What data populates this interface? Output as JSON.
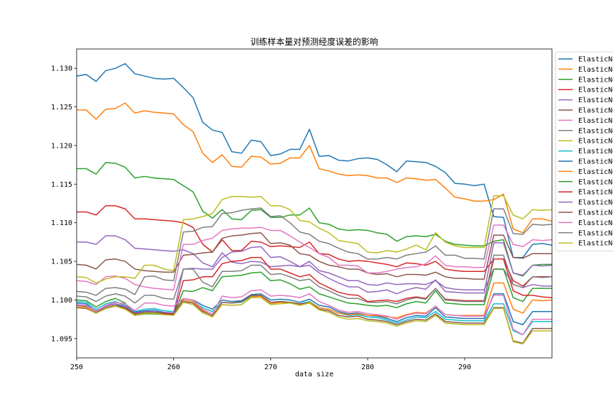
{
  "chart_data": {
    "type": "line",
    "title": "训练样本量对预测经度误差的影响",
    "xlabel": "data size",
    "ylabel": "",
    "xlim": [
      250,
      299
    ],
    "ylim": [
      1.0925,
      1.1325
    ],
    "x_ticks": [
      250,
      260,
      270,
      280,
      290
    ],
    "y_ticks": [
      1.095,
      1.1,
      1.105,
      1.11,
      1.115,
      1.12,
      1.125,
      1.13
    ],
    "grid": false,
    "legend_position": "upper right, outside plot (clipped)",
    "x": [
      250,
      251,
      252,
      253,
      254,
      255,
      256,
      257,
      258,
      259,
      260,
      261,
      262,
      263,
      264,
      265,
      266,
      267,
      268,
      269,
      270,
      271,
      272,
      273,
      274,
      275,
      276,
      277,
      278,
      279,
      280,
      281,
      282,
      283,
      284,
      285,
      286,
      287,
      288,
      289,
      290,
      291,
      292,
      293,
      294,
      295,
      296,
      297,
      298,
      299
    ],
    "series": [
      {
        "name": "ElasticNet",
        "color": "#1f77b4",
        "values": [
          1.129,
          1.1292,
          1.1283,
          1.1297,
          1.13,
          1.1306,
          1.1293,
          1.129,
          1.1287,
          1.1286,
          1.1287,
          1.1275,
          1.1262,
          1.123,
          1.122,
          1.1217,
          1.1192,
          1.119,
          1.1207,
          1.1205,
          1.1187,
          1.1189,
          1.1195,
          1.1195,
          1.1221,
          1.1186,
          1.1187,
          1.1181,
          1.118,
          1.1183,
          1.1184,
          1.1182,
          1.1175,
          1.1166,
          1.118,
          1.1179,
          1.1178,
          1.1173,
          1.1165,
          1.1151,
          1.115,
          1.1148,
          1.115,
          1.1108,
          1.1107,
          1.1055,
          1.1055,
          1.1072,
          1.1073,
          1.1071
        ]
      },
      {
        "name": "ElasticNet",
        "color": "#ff7f0e",
        "values": [
          1.1246,
          1.1246,
          1.1234,
          1.1247,
          1.1248,
          1.1255,
          1.1242,
          1.1245,
          1.1243,
          1.1242,
          1.1241,
          1.1227,
          1.1218,
          1.119,
          1.1178,
          1.1188,
          1.1173,
          1.1172,
          1.1186,
          1.1185,
          1.1176,
          1.1177,
          1.1184,
          1.1184,
          1.12,
          1.117,
          1.1167,
          1.1163,
          1.1161,
          1.1162,
          1.1161,
          1.1158,
          1.1158,
          1.1152,
          1.1158,
          1.1157,
          1.1155,
          1.1156,
          1.1145,
          1.1133,
          1.1131,
          1.1128,
          1.1128,
          1.113,
          1.1137,
          1.1092,
          1.1087,
          1.1105,
          1.1105,
          1.1102
        ]
      },
      {
        "name": "ElasticNet",
        "color": "#2ca02c",
        "values": [
          1.117,
          1.117,
          1.1163,
          1.1178,
          1.1177,
          1.1172,
          1.1158,
          1.116,
          1.1158,
          1.1157,
          1.1156,
          1.1148,
          1.114,
          1.1115,
          1.1106,
          1.1117,
          1.1105,
          1.1104,
          1.1116,
          1.1117,
          1.1107,
          1.1107,
          1.111,
          1.111,
          1.1119,
          1.11,
          1.1098,
          1.1092,
          1.109,
          1.1091,
          1.109,
          1.1087,
          1.1085,
          1.1076,
          1.1082,
          1.1083,
          1.1082,
          1.1085,
          1.1076,
          1.1072,
          1.1071,
          1.107,
          1.107,
          1.1076,
          1.1078,
          1.1035,
          1.1031,
          1.1045,
          1.1046,
          1.1046
        ]
      },
      {
        "name": "ElasticNet",
        "color": "#d62728",
        "values": [
          1.1114,
          1.1114,
          1.111,
          1.1122,
          1.1122,
          1.1118,
          1.1105,
          1.1105,
          1.1104,
          1.1103,
          1.1102,
          1.11,
          1.1094,
          1.1072,
          1.1062,
          1.1078,
          1.1064,
          1.1064,
          1.1076,
          1.1075,
          1.1069,
          1.107,
          1.1069,
          1.1068,
          1.1075,
          1.106,
          1.1059,
          1.1053,
          1.105,
          1.1051,
          1.105,
          1.1048,
          1.1046,
          1.1043,
          1.1048,
          1.1047,
          1.1045,
          1.105,
          1.104,
          1.1038,
          1.1037,
          1.1037,
          1.1037,
          1.1053,
          1.1053,
          1.1025,
          1.1018,
          1.103,
          1.103,
          1.103
        ]
      },
      {
        "name": "ElasticNet",
        "color": "#9467bd",
        "values": [
          1.1075,
          1.1075,
          1.1072,
          1.1083,
          1.1083,
          1.1078,
          1.1067,
          1.1066,
          1.1065,
          1.1064,
          1.1063,
          1.1065,
          1.106,
          1.1048,
          1.1043,
          1.1061,
          1.1049,
          1.1047,
          1.105,
          1.1049,
          1.1043,
          1.1044,
          1.1045,
          1.1043,
          1.105,
          1.1038,
          1.1035,
          1.103,
          1.1025,
          1.1025,
          1.102,
          1.1019,
          1.1022,
          1.102,
          1.1021,
          1.1021,
          1.102,
          1.1025,
          1.1016,
          1.1014,
          1.1013,
          1.1013,
          1.1013,
          1.104,
          1.104,
          1.102,
          1.1016,
          1.102,
          1.1018,
          1.1018
        ]
      },
      {
        "name": "ElasticNet",
        "color": "#8c564b",
        "values": [
          1.1046,
          1.1045,
          1.104,
          1.1052,
          1.1053,
          1.105,
          1.104,
          1.1038,
          1.1037,
          1.1036,
          1.1036,
          1.1058,
          1.1059,
          1.1061,
          1.1062,
          1.108,
          1.1083,
          1.1084,
          1.1086,
          1.1087,
          1.1073,
          1.1074,
          1.1071,
          1.106,
          1.1058,
          1.105,
          1.1045,
          1.1043,
          1.104,
          1.104,
          1.1035,
          1.1033,
          1.1034,
          1.103,
          1.1033,
          1.1033,
          1.1032,
          1.1036,
          1.103,
          1.1028,
          1.1028,
          1.1027,
          1.1027,
          1.1084,
          1.1084,
          1.1055,
          1.1054,
          1.106,
          1.106,
          1.106
        ]
      },
      {
        "name": "ElasticNet",
        "color": "#e377c2",
        "values": [
          1.1025,
          1.1024,
          1.102,
          1.103,
          1.1031,
          1.1028,
          1.102,
          1.1017,
          1.1015,
          1.1014,
          1.1013,
          1.1072,
          1.1072,
          1.1077,
          1.108,
          1.109,
          1.1092,
          1.1093,
          1.1093,
          1.1094,
          1.109,
          1.109,
          1.1083,
          1.1075,
          1.1068,
          1.106,
          1.1055,
          1.1045,
          1.1045,
          1.1044,
          1.1035,
          1.1035,
          1.1037,
          1.104,
          1.1042,
          1.1043,
          1.1047,
          1.1057,
          1.1045,
          1.1043,
          1.1043,
          1.1042,
          1.1042,
          1.1097,
          1.1097,
          1.1072,
          1.1069,
          1.1078,
          1.1077,
          1.1078
        ]
      },
      {
        "name": "ElasticNet",
        "color": "#7f7f7f",
        "values": [
          1.1011,
          1.101,
          1.1006,
          1.1015,
          1.1016,
          1.1014,
          1.1007,
          1.103,
          1.1031,
          1.1026,
          1.1025,
          1.1088,
          1.1089,
          1.1094,
          1.1095,
          1.1112,
          1.1113,
          1.1116,
          1.1118,
          1.1119,
          1.1108,
          1.1109,
          1.11,
          1.1088,
          1.1085,
          1.1076,
          1.1073,
          1.1067,
          1.1062,
          1.106,
          1.1053,
          1.1053,
          1.1055,
          1.1053,
          1.1058,
          1.106,
          1.1062,
          1.107,
          1.1058,
          1.1058,
          1.1054,
          1.1054,
          1.1053,
          1.1118,
          1.1118,
          1.1086,
          1.1085,
          1.1098,
          1.1097,
          1.1098
        ]
      },
      {
        "name": "ElasticNet",
        "color": "#bcbd22",
        "values": [
          1.103,
          1.1029,
          1.1022,
          1.1027,
          1.103,
          1.103,
          1.1028,
          1.1045,
          1.1045,
          1.104,
          1.1038,
          1.1104,
          1.1105,
          1.1108,
          1.1112,
          1.113,
          1.1134,
          1.1134,
          1.1133,
          1.1134,
          1.1122,
          1.1122,
          1.1117,
          1.1103,
          1.1101,
          1.1093,
          1.1087,
          1.1077,
          1.1075,
          1.1073,
          1.1062,
          1.1061,
          1.1064,
          1.1062,
          1.1066,
          1.1071,
          1.1065,
          1.1087,
          1.1075,
          1.107,
          1.1068,
          1.1068,
          1.1068,
          1.1135,
          1.1135,
          1.111,
          1.1105,
          1.1117,
          1.1116,
          1.1117
        ]
      },
      {
        "name": "ElasticNet",
        "color": "#17becf",
        "values": [
          1.0998,
          1.0997,
          1.0988,
          1.0995,
          1.0998,
          1.0993,
          1.0985,
          1.0988,
          1.0989,
          1.0986,
          1.0985,
          1.1,
          1.0998,
          1.099,
          1.0985,
          1.0997,
          1.0996,
          1.0997,
          1.1005,
          1.1006,
          1.0997,
          1.0998,
          1.0997,
          1.0995,
          1.0998,
          1.099,
          1.0988,
          1.0983,
          1.098,
          1.0981,
          1.0978,
          1.0977,
          1.0974,
          1.097,
          1.0974,
          1.0978,
          1.0977,
          1.0985,
          1.0975,
          1.0974,
          1.0973,
          1.0973,
          1.0973,
          1.0995,
          1.0995,
          1.096,
          1.0955,
          1.0972,
          1.0972,
          1.0972
        ]
      },
      {
        "name": "ElasticNet",
        "color": "#1f77b4",
        "values": [
          1.0996,
          1.0995,
          1.0985,
          1.0992,
          1.0995,
          1.099,
          1.0984,
          1.0986,
          1.0987,
          1.0984,
          1.0983,
          1.1002,
          1.1,
          1.0993,
          1.0988,
          1.1,
          1.0998,
          1.0999,
          1.1007,
          1.1008,
          1.1,
          1.1001,
          1.1,
          1.0997,
          1.1001,
          1.0993,
          1.0991,
          1.0985,
          1.0982,
          1.0983,
          1.098,
          1.0979,
          1.0976,
          1.0972,
          1.0977,
          1.098,
          1.0979,
          1.099,
          1.0978,
          1.0977,
          1.0976,
          1.0976,
          1.0976,
          1.1008,
          1.1008,
          1.0972,
          1.0968,
          1.0985,
          1.0985,
          1.0985
        ]
      },
      {
        "name": "ElasticNet",
        "color": "#ff7f0e",
        "values": [
          1.0993,
          1.0991,
          1.0983,
          1.099,
          1.0993,
          1.0988,
          1.0981,
          1.0983,
          1.0983,
          1.0982,
          1.0982,
          1.1,
          1.0998,
          1.0987,
          1.0979,
          1.0994,
          1.0993,
          1.0994,
          1.1004,
          1.1005,
          1.0995,
          1.0997,
          1.0996,
          1.0994,
          1.0997,
          1.099,
          1.0988,
          1.0983,
          1.0981,
          1.0982,
          1.098,
          1.098,
          1.0978,
          1.0977,
          1.0981,
          1.0984,
          1.0983,
          1.0992,
          1.0981,
          1.098,
          1.098,
          1.098,
          1.098,
          1.1022,
          1.1022,
          1.0988,
          1.0983,
          1.1,
          1.0999,
          1.1
        ]
      },
      {
        "name": "ElasticNet",
        "color": "#2ca02c",
        "values": [
          1.1,
          1.0999,
          1.0991,
          1.0998,
          1.1002,
          1.0996,
          1.098,
          1.0982,
          1.0982,
          1.0981,
          1.0981,
          1.1012,
          1.1011,
          1.1016,
          1.1012,
          1.103,
          1.1031,
          1.1032,
          1.1035,
          1.1036,
          1.1025,
          1.1026,
          1.1021,
          1.1014,
          1.1017,
          1.1008,
          1.1004,
          1.1,
          1.0996,
          1.0995,
          1.0993,
          1.0992,
          1.0993,
          1.099,
          1.0995,
          1.0998,
          1.0996,
          1.1012,
          1.0996,
          1.0995,
          1.0994,
          1.0994,
          1.0994,
          1.104,
          1.104,
          1.1003,
          1.0998,
          1.1015,
          1.1015,
          1.1015
        ]
      },
      {
        "name": "ElasticNet",
        "color": "#d62728",
        "values": [
          1.099,
          1.0989,
          1.0983,
          1.0989,
          1.0992,
          1.0989,
          1.098,
          1.0983,
          1.0983,
          1.0982,
          1.0981,
          1.1025,
          1.1026,
          1.103,
          1.103,
          1.1047,
          1.105,
          1.1051,
          1.1055,
          1.1055,
          1.104,
          1.104,
          1.1035,
          1.103,
          1.1033,
          1.1022,
          1.1016,
          1.101,
          1.1007,
          1.1006,
          1.0998,
          1.0999,
          1.1,
          1.0998,
          1.1002,
          1.1004,
          1.1002,
          1.1015,
          1.1001,
          1.1,
          1.0999,
          1.0999,
          1.0999,
          1.1053,
          1.1053,
          1.1012,
          1.1006,
          1.1006,
          1.1004,
          1.1003
        ]
      },
      {
        "name": "ElasticNet",
        "color": "#9467bd",
        "values": [
          1.0993,
          1.0992,
          1.0986,
          1.0992,
          1.0995,
          1.0992,
          1.0983,
          1.0985,
          1.0985,
          1.0984,
          1.0983,
          1.104,
          1.1041,
          1.104,
          1.104,
          1.1055,
          1.1062,
          1.1063,
          1.1068,
          1.1069,
          1.1055,
          1.1056,
          1.105,
          1.1043,
          1.1045,
          1.1035,
          1.1028,
          1.1022,
          1.1017,
          1.1017,
          1.101,
          1.1011,
          1.1013,
          1.1008,
          1.1013,
          1.1016,
          1.1014,
          1.1026,
          1.1011,
          1.101,
          1.1009,
          1.1009,
          1.1009,
          1.1074,
          1.1074,
          1.1035,
          1.1032,
          1.1045,
          1.1044,
          1.1045
        ]
      },
      {
        "name": "ElasticNet",
        "color": "#8c564b",
        "values": [
          1.0991,
          1.099,
          1.0984,
          1.099,
          1.0993,
          1.099,
          1.0982,
          1.0984,
          1.0984,
          1.0983,
          1.0982,
          1.0998,
          1.0996,
          1.0985,
          1.098,
          1.0997,
          1.0996,
          1.0998,
          1.1006,
          1.1006,
          1.0997,
          1.0998,
          1.0997,
          1.0995,
          1.0996,
          1.0988,
          1.0986,
          1.098,
          1.0978,
          1.0979,
          1.0975,
          1.0974,
          1.0972,
          1.0968,
          1.0972,
          1.0975,
          1.0974,
          1.0982,
          1.0972,
          1.0971,
          1.097,
          1.097,
          1.097,
          1.099,
          1.099,
          1.0947,
          1.0944,
          1.0963,
          1.0963,
          1.0963
        ]
      },
      {
        "name": "ElasticNet",
        "color": "#e377c2",
        "values": [
          1.0994,
          1.0993,
          1.0985,
          1.0993,
          1.0997,
          1.0995,
          1.0986,
          1.0996,
          1.0996,
          1.0993,
          1.0992,
          1.1002,
          1.1,
          1.0988,
          1.0982,
          1.1005,
          1.1003,
          1.1004,
          1.1012,
          1.1013,
          1.1005,
          1.1006,
          1.1005,
          1.1003,
          1.1008,
          1.0998,
          1.0993,
          1.0987,
          1.0984,
          1.0985,
          1.0982,
          1.0981,
          1.0979,
          1.0975,
          1.098,
          1.0983,
          1.0982,
          1.0992,
          1.0981,
          1.098,
          1.0979,
          1.0979,
          1.0979,
          1.1006,
          1.1006,
          1.0962,
          1.0955,
          1.0975,
          1.0975,
          1.0975
        ]
      },
      {
        "name": "ElasticNet",
        "color": "#7f7f7f",
        "values": [
          1.1005,
          1.1004,
          1.0998,
          1.1005,
          1.1008,
          1.1005,
          1.0996,
          1.1006,
          1.1006,
          1.1002,
          1.1001,
          1.104,
          1.104,
          1.1023,
          1.1017,
          1.1037,
          1.1037,
          1.1038,
          1.1045,
          1.1045,
          1.1033,
          1.1034,
          1.103,
          1.1025,
          1.1027,
          1.1017,
          1.1012,
          1.1006,
          1.1002,
          1.1002,
          1.0997,
          1.0997,
          1.0998,
          1.0995,
          1.1,
          1.1003,
          1.1001,
          1.1015,
          1.1,
          1.0999,
          1.0998,
          1.0998,
          1.0998,
          1.1058,
          1.1058,
          1.102,
          1.1016,
          1.103,
          1.1029,
          1.103
        ]
      },
      {
        "name": "ElasticNet",
        "color": "#bcbd22",
        "values": [
          1.0991,
          1.099,
          1.0983,
          1.0989,
          1.0992,
          1.0988,
          1.098,
          1.0983,
          1.0983,
          1.0981,
          1.098,
          1.0997,
          1.0994,
          1.0983,
          1.0978,
          1.0994,
          1.0993,
          1.0994,
          1.1003,
          1.1003,
          1.0994,
          1.0995,
          1.0996,
          1.0993,
          1.0996,
          1.0987,
          1.0984,
          1.0978,
          1.0975,
          1.0976,
          1.0973,
          1.0972,
          1.097,
          1.0966,
          1.097,
          1.0973,
          1.0972,
          1.098,
          1.097,
          1.0969,
          1.0968,
          1.0968,
          1.0968,
          1.0989,
          1.0989,
          1.0946,
          1.0943,
          1.096,
          1.096,
          1.096
        ]
      }
    ]
  }
}
